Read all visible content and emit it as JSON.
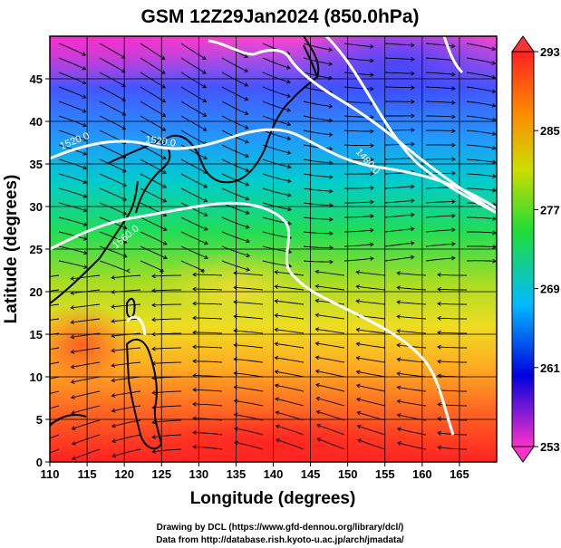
{
  "title": "GSM 12Z29Jan2024 (850.0hPa)",
  "x_axis": {
    "label": "Longitude (degrees)",
    "ticks": [
      "110",
      "115",
      "120",
      "125",
      "130",
      "135",
      "140",
      "145",
      "150",
      "155",
      "160",
      "165"
    ]
  },
  "y_axis": {
    "label": "Latitude  (degrees)",
    "ticks": [
      "0",
      "5",
      "10",
      "15",
      "20",
      "25",
      "30",
      "35",
      "40",
      "45"
    ]
  },
  "colorbar": {
    "ticks": [
      "253",
      "261",
      "269",
      "277",
      "285",
      "293"
    ],
    "palette": [
      "#ff33cc",
      "#0000ff",
      "#00ccff",
      "#22dd33",
      "#ccdd00",
      "#ff8800",
      "#ff2222"
    ]
  },
  "contour_labels": [
    "1520.0",
    "1520.0",
    "1480.0",
    "1560.0"
  ],
  "credits": {
    "line1": "Drawing by DCL (https://www.gfd-dennou.org/library/dcl/)",
    "line2": "Data from http://database.rish.kyoto-u.ac.jp/arch/jmadata/"
  },
  "map_extent": {
    "lon": [
      110,
      170
    ],
    "lat": [
      0,
      50
    ]
  }
}
